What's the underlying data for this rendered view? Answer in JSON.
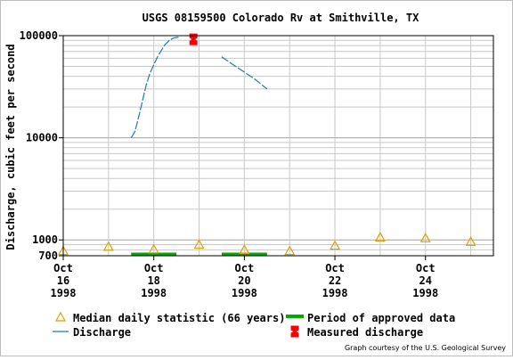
{
  "chart_data": {
    "type": "line",
    "title": "USGS 08159500 Colorado Rv at Smithville, TX",
    "ylabel": "Discharge, cubic feet per second",
    "xlabel": "",
    "y_scale": "log",
    "ylim": [
      700,
      100000
    ],
    "y_ticks": [
      {
        "value": 100000,
        "label": "100000"
      },
      {
        "value": 10000,
        "label": "10000"
      },
      {
        "value": 1000,
        "label": "1000"
      },
      {
        "value": 700,
        "label": "700"
      }
    ],
    "xlim": [
      "1998-10-16T00:00",
      "1998-10-25T12:00"
    ],
    "x_ticks": [
      {
        "value": "1998-10-16",
        "lines": [
          "Oct",
          "16",
          "1998"
        ]
      },
      {
        "value": "1998-10-18",
        "lines": [
          "Oct",
          "18",
          "1998"
        ]
      },
      {
        "value": "1998-10-20",
        "lines": [
          "Oct",
          "20",
          "1998"
        ]
      },
      {
        "value": "1998-10-22",
        "lines": [
          "Oct",
          "22",
          "1998"
        ]
      },
      {
        "value": "1998-10-24",
        "lines": [
          "Oct",
          "24",
          "1998"
        ]
      }
    ],
    "grid": true,
    "legend_position": "bottom",
    "series": [
      {
        "name": "Discharge",
        "kind": "line",
        "color": "#1f77b4",
        "dashed": true,
        "segments": [
          [
            {
              "x": "1998-10-17T12:00",
              "y": 10000
            },
            {
              "x": "1998-10-17T14:00",
              "y": 11500
            },
            {
              "x": "1998-10-17T16:00",
              "y": 16000
            },
            {
              "x": "1998-10-17T18:00",
              "y": 23000
            },
            {
              "x": "1998-10-17T20:00",
              "y": 33000
            },
            {
              "x": "1998-10-17T22:00",
              "y": 43000
            },
            {
              "x": "1998-10-18T00:00",
              "y": 52000
            },
            {
              "x": "1998-10-18T02:00",
              "y": 62000
            },
            {
              "x": "1998-10-18T04:00",
              "y": 72000
            },
            {
              "x": "1998-10-18T06:00",
              "y": 82000
            },
            {
              "x": "1998-10-18T08:00",
              "y": 89000
            },
            {
              "x": "1998-10-18T10:00",
              "y": 94000
            },
            {
              "x": "1998-10-18T12:00",
              "y": 96000
            },
            {
              "x": "1998-10-18T14:00",
              "y": 97000
            }
          ],
          [
            {
              "x": "1998-10-19T12:00",
              "y": 62000
            },
            {
              "x": "1998-10-19T18:00",
              "y": 52000
            },
            {
              "x": "1998-10-20T00:00",
              "y": 44000
            },
            {
              "x": "1998-10-20T06:00",
              "y": 37000
            },
            {
              "x": "1998-10-20T12:00",
              "y": 30000
            }
          ]
        ]
      },
      {
        "name": "Median daily statistic (66 years)",
        "kind": "marker",
        "marker": "triangle",
        "color": "#e0a000",
        "points": [
          {
            "x": "1998-10-16T00:00",
            "y": 780
          },
          {
            "x": "1998-10-17T00:00",
            "y": 860
          },
          {
            "x": "1998-10-18T00:00",
            "y": 810
          },
          {
            "x": "1998-10-19T00:00",
            "y": 900
          },
          {
            "x": "1998-10-20T00:00",
            "y": 800
          },
          {
            "x": "1998-10-21T00:00",
            "y": 780
          },
          {
            "x": "1998-10-22T00:00",
            "y": 880
          },
          {
            "x": "1998-10-23T00:00",
            "y": 1060
          },
          {
            "x": "1998-10-24T00:00",
            "y": 1040
          },
          {
            "x": "1998-10-25T00:00",
            "y": 960
          }
        ]
      },
      {
        "name": "Measured discharge",
        "kind": "marker",
        "marker": "hourglass",
        "color": "#ff0000",
        "points": [
          {
            "x": "1998-10-18T21:00",
            "y": 92000
          }
        ]
      },
      {
        "name": "Period of approved data",
        "kind": "period",
        "color": "#00aa00",
        "ranges": [
          [
            "1998-10-17T12:00",
            "1998-10-18T12:00"
          ],
          [
            "1998-10-19T12:00",
            "1998-10-20T12:00"
          ]
        ]
      }
    ],
    "credit": "Graph courtesy of the U.S. Geological Survey"
  }
}
